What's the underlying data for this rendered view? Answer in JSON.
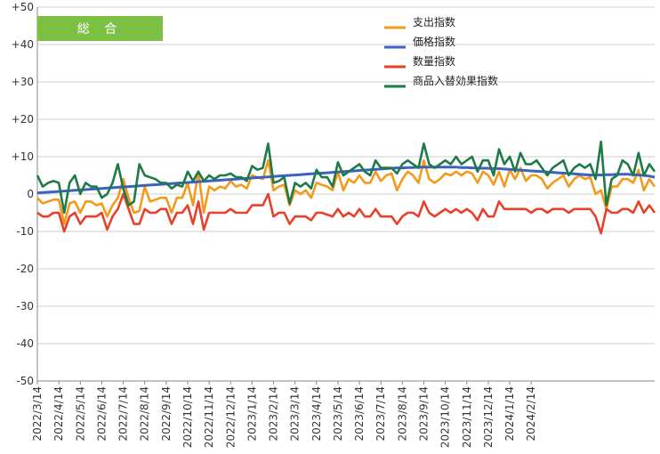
{
  "colors": {
    "expenditure": "#F39A1B",
    "price": "#3A62BE",
    "quantity": "#E8412B",
    "substitution": "#1E7A46",
    "badge": "#7BC043",
    "grid": "#cccccc"
  },
  "chart_data": {
    "type": "line",
    "title": "総 合",
    "xlabel": "",
    "ylabel": "",
    "ylim": [
      -50,
      50
    ],
    "yticks": [
      "+50",
      "+40",
      "+30",
      "+20",
      "+10",
      "0",
      "-10",
      "-20",
      "-30",
      "-40",
      "-50"
    ],
    "ytick_values": [
      50,
      40,
      30,
      20,
      10,
      0,
      -10,
      -20,
      -30,
      -40,
      -50
    ],
    "x_tick_labels": [
      "2022/3/14",
      "2022/4/14",
      "2022/5/14",
      "2022/6/14",
      "2022/7/14",
      "2022/8/14",
      "2022/9/14",
      "2022/10/14",
      "2022/11/14",
      "2022/12/14",
      "2023/1/14",
      "2023/2/14",
      "2023/3/14",
      "2023/4/14",
      "2023/5/14",
      "2023/6/14",
      "2023/7/14",
      "2023/8/14",
      "2023/9/14",
      "2023/10/14",
      "2023/11/14",
      "2023/12/14",
      "2024/1/14",
      "2024/2/14"
    ],
    "points_per_tick": 4,
    "grid": "horizontal",
    "legend_position": "top-right",
    "series": [
      {
        "name": "支出指数",
        "color_key": "expenditure",
        "values": [
          -1,
          -2.5,
          -2,
          -1.5,
          -1.5,
          -8,
          -2.5,
          -2,
          -5,
          -2,
          -2,
          -3,
          -2.5,
          -6,
          -3,
          -1,
          4,
          -1,
          -5,
          -4.5,
          2,
          -2,
          -1.5,
          -1,
          -1,
          -5,
          -1,
          -1,
          3,
          -3,
          6,
          -5,
          2,
          1,
          2,
          1.5,
          3.5,
          2,
          2.5,
          1.5,
          5,
          4.5,
          4,
          9,
          1,
          2,
          2.5,
          -3,
          1,
          0,
          1,
          -1,
          3,
          2.5,
          2,
          1,
          6,
          1,
          4,
          3,
          5,
          3,
          3,
          6,
          3.5,
          5,
          5.5,
          1,
          4,
          6,
          5,
          3,
          9,
          4,
          3,
          4,
          5.5,
          5,
          6,
          5,
          6,
          5.5,
          3,
          6,
          5,
          2.5,
          6,
          2,
          6.5,
          4,
          7,
          3.5,
          5,
          5,
          4,
          1.5,
          3,
          4,
          5,
          2,
          4,
          5,
          4,
          4.5,
          0,
          1,
          -4,
          2,
          2,
          4,
          4,
          3,
          6.5,
          1,
          4,
          2
        ]
      },
      {
        "name": "価格指数",
        "color_key": "price",
        "values": [
          0.3,
          0.4,
          0.5,
          0.6,
          0.7,
          0.8,
          0.9,
          1,
          1.1,
          1.2,
          1.3,
          1.4,
          1.5,
          1.6,
          1.7,
          1.8,
          1.9,
          2,
          2.1,
          2.2,
          2.3,
          2.4,
          2.5,
          2.6,
          2.7,
          2.8,
          2.9,
          3,
          3.1,
          3.2,
          3.3,
          3.4,
          3.5,
          3.6,
          3.7,
          3.8,
          3.9,
          4,
          4.1,
          4.2,
          4.3,
          4.4,
          4.5,
          4.6,
          4.7,
          4.8,
          4.9,
          5,
          5.1,
          5.2,
          5.3,
          5.4,
          5.5,
          5.6,
          5.7,
          5.8,
          5.9,
          6,
          6.1,
          6.2,
          6.3,
          6.4,
          6.5,
          6.6,
          6.7,
          6.8,
          6.9,
          7,
          7,
          7.1,
          7.1,
          7.2,
          7.2,
          7.2,
          7.2,
          7.2,
          7.2,
          7.2,
          7.2,
          7.1,
          7.1,
          7,
          7,
          6.9,
          6.9,
          6.8,
          6.8,
          6.7,
          6.6,
          6.5,
          6.4,
          6.3,
          6.2,
          6.1,
          6,
          5.9,
          5.8,
          5.7,
          5.6,
          5.5,
          5.4,
          5.3,
          5.2,
          5.1,
          5.1,
          5.1,
          5.2,
          5.2,
          5.3,
          5.3,
          5.3,
          5.2,
          5.1,
          5,
          4.8,
          4.5
        ]
      },
      {
        "name": "数量指数",
        "color_key": "quantity",
        "values": [
          -5,
          -6,
          -6,
          -5,
          -5,
          -10,
          -6,
          -5,
          -8,
          -6,
          -6,
          -6,
          -5,
          -9.5,
          -6,
          -4,
          0,
          -4,
          -8,
          -8,
          -4,
          -5,
          -5,
          -4,
          -4,
          -8,
          -5,
          -5,
          -3,
          -8,
          -2,
          -9.5,
          -5,
          -5,
          -5,
          -5,
          -4,
          -5,
          -5,
          -5,
          -3,
          -3,
          -3,
          0,
          -6,
          -5,
          -5,
          -8,
          -6,
          -6,
          -6,
          -7,
          -5,
          -5,
          -5.5,
          -6,
          -4,
          -6,
          -5,
          -6,
          -4,
          -6,
          -6,
          -4,
          -6,
          -6,
          -6,
          -8,
          -6,
          -5,
          -5,
          -6,
          -2,
          -5,
          -6,
          -5,
          -4,
          -5,
          -4,
          -5,
          -4,
          -5,
          -7,
          -4,
          -6,
          -6,
          -2,
          -4,
          -4,
          -4,
          -4,
          -4,
          -5,
          -4,
          -4,
          -5,
          -4,
          -4,
          -4,
          -5,
          -4,
          -4,
          -4,
          -4,
          -6,
          -10.5,
          -4,
          -5,
          -5,
          -4,
          -4,
          -5,
          -2,
          -5,
          -3,
          -5
        ]
      },
      {
        "name": "商品入替効果指数",
        "color_key": "substitution",
        "values": [
          5,
          2,
          3,
          3.5,
          3,
          -5,
          3,
          5,
          0,
          3,
          2,
          2,
          -1,
          0,
          3,
          8,
          1.5,
          -3,
          -2,
          8,
          5,
          4.5,
          4,
          3,
          3,
          1.5,
          2.5,
          2,
          6,
          3.5,
          6,
          3.5,
          5,
          4,
          5,
          5,
          5.5,
          4.5,
          4.5,
          3.5,
          7.5,
          6.5,
          7,
          13.5,
          3,
          3.5,
          4.5,
          -2.5,
          3,
          2,
          3,
          1.5,
          6.5,
          4.5,
          4.5,
          2,
          8.5,
          5,
          6,
          7,
          8,
          6,
          5,
          9,
          7,
          7,
          7,
          5.5,
          8,
          9,
          8,
          7,
          13.5,
          8,
          7,
          8,
          9,
          8,
          10,
          8,
          9,
          10,
          6,
          9,
          9,
          5,
          12,
          8,
          10,
          6,
          11,
          8,
          8,
          9,
          7,
          5,
          7,
          8,
          9,
          5,
          7,
          8,
          7,
          8,
          4,
          14,
          -3,
          4,
          5,
          9,
          8,
          5,
          11,
          5,
          8,
          6
        ]
      }
    ]
  }
}
